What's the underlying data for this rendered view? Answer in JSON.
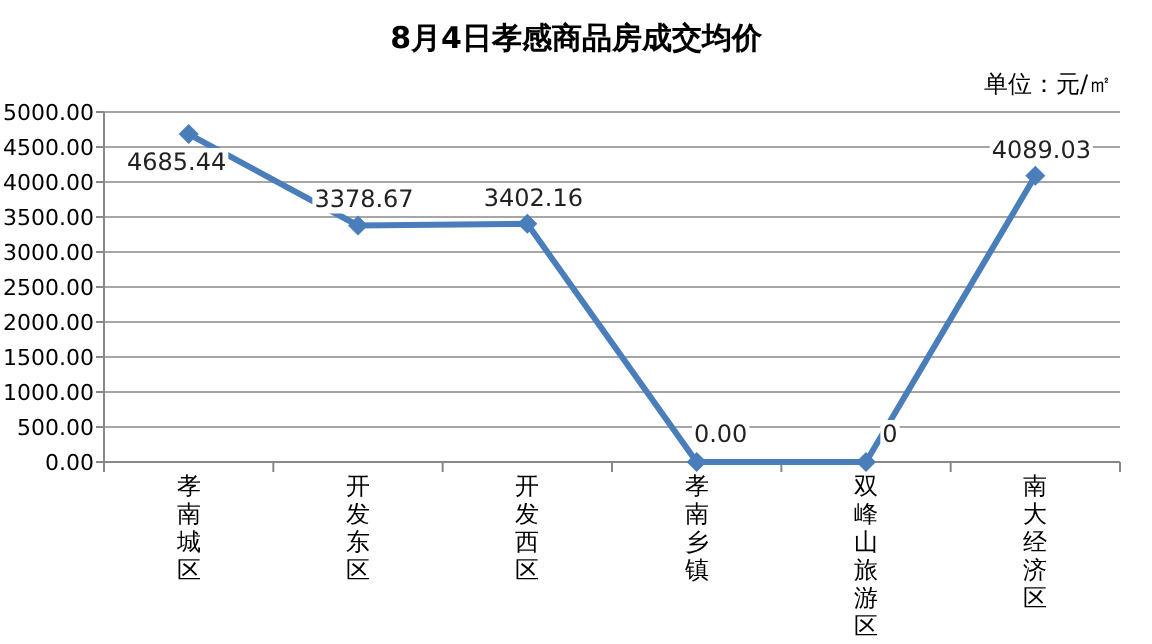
{
  "chart_data": {
    "type": "line",
    "title": "8月4日孝感商品房成交均价",
    "annotations": [
      "单位：元/㎡"
    ],
    "categories": [
      "孝南城区",
      "开发东区",
      "开发西区",
      "孝南乡镇",
      "双峰山旅游区",
      "南大经济区"
    ],
    "series": [
      {
        "color": "#4a7ebb",
        "values": [
          4685.44,
          3378.67,
          3402.16,
          0,
          0,
          4089.03
        ],
        "value_labels": [
          "4685.44",
          "3378.67",
          "3402.16",
          "0.00",
          "0",
          "4089.03"
        ]
      }
    ],
    "ylim": [
      0,
      5000
    ],
    "yticks": [
      {
        "value": 0,
        "label": "0.00"
      },
      {
        "value": 500,
        "label": "500.00"
      },
      {
        "value": 1000,
        "label": "1000.00"
      },
      {
        "value": 1500,
        "label": "1500.00"
      },
      {
        "value": 2000,
        "label": "2000.00"
      },
      {
        "value": 2500,
        "label": "2500.00"
      },
      {
        "value": 3000,
        "label": "3000.00"
      },
      {
        "value": 3500,
        "label": "3500.00"
      },
      {
        "value": 4000,
        "label": "4000.00"
      },
      {
        "value": 4500,
        "label": "4500.00"
      },
      {
        "value": 5000,
        "label": "5000.00"
      }
    ],
    "grid": "y",
    "marker": "diamond",
    "line_style": "solid"
  }
}
